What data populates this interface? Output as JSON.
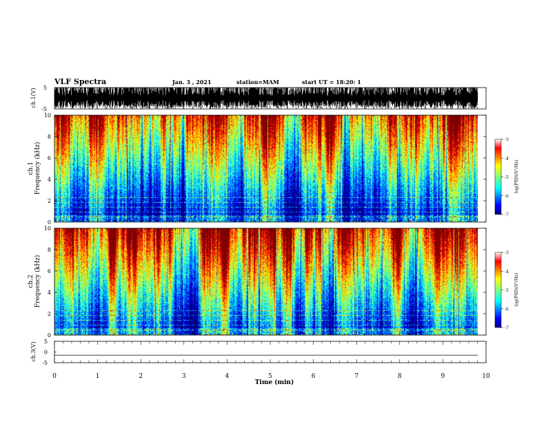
{
  "header": {
    "title": "VLF Spectra",
    "date": "Jan. 3 , 2021",
    "station": "station=MAM",
    "start": "start UT = 18:20: 1"
  },
  "chart_data": [
    {
      "type": "line",
      "name": "ch1-waveform",
      "ylabel": "ch.1(V)",
      "ylim": [
        -5,
        5
      ],
      "yticks": [
        "5",
        "-5"
      ],
      "xlim": [
        0,
        10
      ]
    },
    {
      "type": "heatmap",
      "name": "ch1-spectrogram",
      "ylabel_1": "ch.1",
      "ylabel_2": "Frequency (kHz)",
      "ylim": [
        0,
        10
      ],
      "yticks": [
        "0",
        "2",
        "4",
        "6",
        "8",
        "10"
      ],
      "xlim": [
        0,
        10
      ],
      "colorbar": {
        "label": "log(PSD)(V²/Hz)",
        "range": [
          -7,
          -3
        ],
        "ticks": [
          "-3",
          "-4",
          "-5",
          "-6",
          "-7"
        ]
      }
    },
    {
      "type": "heatmap",
      "name": "ch2-spectrogram",
      "ylabel_1": "ch.2",
      "ylabel_2": "Frequency (kHz)",
      "ylim": [
        0,
        10
      ],
      "yticks": [
        "0",
        "2",
        "4",
        "6",
        "8",
        "10"
      ],
      "xlim": [
        0,
        10
      ],
      "colorbar": {
        "label": "log(PSD)(V²/Hz)",
        "range": [
          -7,
          -3
        ],
        "ticks": [
          "-3",
          "-4",
          "-5",
          "-6",
          "-7"
        ]
      }
    },
    {
      "type": "line",
      "name": "ch3-waveform",
      "ylabel": "ch.3(V)",
      "ylim": [
        -5,
        5
      ],
      "yticks": [
        "5",
        "0",
        "-5"
      ],
      "values": [
        -1.5
      ],
      "xlim": [
        0,
        10
      ],
      "xlabel": "Time (min)",
      "xticks": [
        "0",
        "1",
        "2",
        "3",
        "4",
        "5",
        "6",
        "7",
        "8",
        "9",
        "10"
      ]
    }
  ],
  "colors": {
    "jet": [
      "#00007f",
      "#0000ff",
      "#007fff",
      "#00ffff",
      "#7fff7f",
      "#ffff00",
      "#ff7f00",
      "#ff0000",
      "#7f0000"
    ]
  }
}
